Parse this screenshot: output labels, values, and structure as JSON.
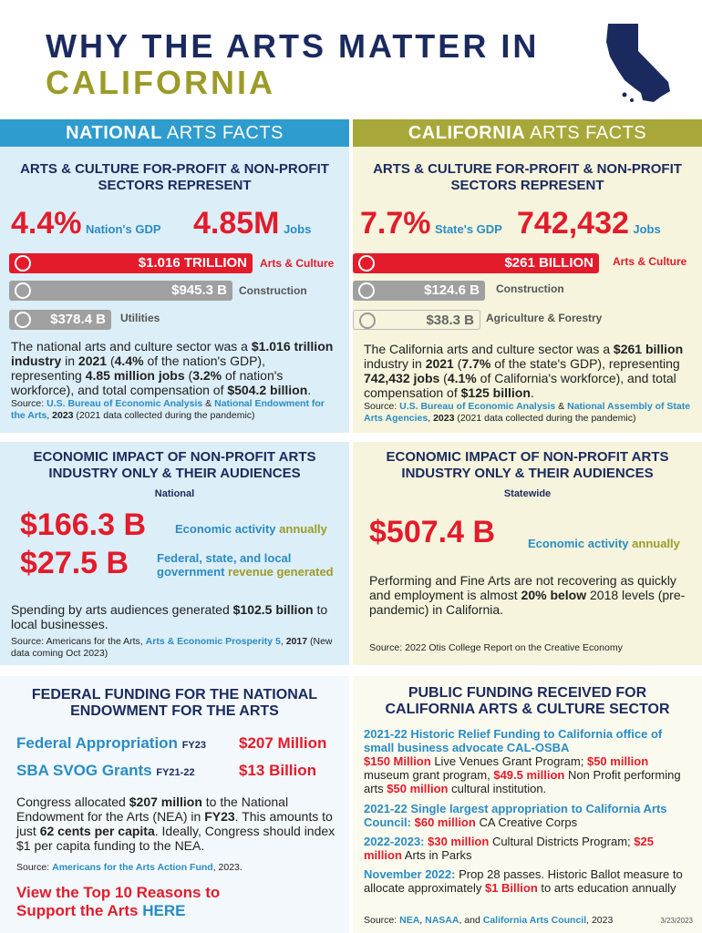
{
  "header": {
    "title_line1": "WHY THE ARTS MATTER IN",
    "title_line2": "CALIFORNIA"
  },
  "national": {
    "heading": {
      "bold": "NATIONAL",
      "light": "ARTS FACTS"
    },
    "sectors": {
      "title": "ARTS & CULTURE FOR-PROFIT & NON-PROFIT SECTORS REPRESENT",
      "gdp_value": "4.4%",
      "gdp_label": "Nation's GDP",
      "jobs_value": "4.85M",
      "jobs_label": "Jobs",
      "bars": [
        {
          "value": "$1.016 TRILLION",
          "label": "Arts & Culture"
        },
        {
          "value": "$945.3 B",
          "label": "Construction"
        },
        {
          "value": "$378.4 B",
          "label": "Utilities"
        }
      ],
      "summary": [
        "The national arts and culture sector was a ",
        "$1.016 trillion industry",
        " in ",
        "2021",
        " (",
        "4.4%",
        " of the nation's GDP), representing ",
        "4.85 million jobs",
        " (",
        "3.2%",
        " of nation's workforce), and total compensation of ",
        "$504.2 billion",
        "."
      ],
      "source": [
        "Source: ",
        "U.S. Bureau of Economic Analysis",
        " & ",
        "National Endowment for the Arts",
        ", ",
        "2023",
        " (2021 data collected during the pandemic)"
      ]
    },
    "impact": {
      "title": "ECONOMIC IMPACT OF NON-PROFIT ARTS INDUSTRY ONLY & THEIR AUDIENCES",
      "subtitle": "National",
      "items": [
        {
          "value": "$166.3 B",
          "label": "Economic activity",
          "suffix": " annually"
        },
        {
          "value": "$27.5 B",
          "label": "Federal, state, and local government",
          "suffix": " revenue generated"
        }
      ],
      "text": [
        "Spending by arts audiences generated ",
        "$102.5 billion",
        " to local businesses."
      ],
      "source": [
        "Source: Americans for the Arts, ",
        "Arts & Economic Prosperity 5",
        ", ",
        "2017",
        " (New data coming Oct 2023)"
      ]
    },
    "funding": {
      "title": "FEDERAL FUNDING FOR THE NATIONAL ENDOWMENT FOR THE ARTS",
      "rows": [
        {
          "label": "Federal Appropriation",
          "period": "FY23",
          "amount": "$207 Million"
        },
        {
          "label": "SBA SVOG Grants",
          "period": "FY21-22",
          "amount": "$13 Billion"
        }
      ],
      "text": [
        "Congress allocated ",
        "$207 million",
        " to the National Endowment for the Arts (NEA) in ",
        "FY23",
        ". This amounts to just ",
        "62 cents per capita",
        ". Ideally, Congress should index $1 per capita funding to the NEA."
      ],
      "source": [
        "Source: ",
        "Americans for the Arts Action Fund",
        ", 2023."
      ],
      "link": [
        "View the Top 10 Reasons to Support the Arts ",
        "HERE"
      ]
    }
  },
  "california": {
    "heading": {
      "bold": "CALIFORNIA",
      "light": "ARTS FACTS"
    },
    "sectors": {
      "title": "ARTS & CULTURE FOR-PROFIT & NON-PROFIT SECTORS REPRESENT",
      "gdp_value": "7.7%",
      "gdp_label": "State's GDP",
      "jobs_value": "742,432",
      "jobs_label": "Jobs",
      "bars": [
        {
          "value": "$261 BILLION",
          "label": "Arts & Culture"
        },
        {
          "value": "$124.6 B",
          "label": "Construction"
        },
        {
          "value": "$38.3 B",
          "label": "Agriculture & Forestry"
        }
      ],
      "summary": [
        "The California arts and culture sector was a ",
        "$261 billion",
        " industry in ",
        "2021",
        " (",
        "7.7%",
        " of the state's GDP), representing ",
        "742,432 jobs",
        " (",
        "4.1%",
        " of California's workforce), and total compensation of ",
        "$125 billion",
        "."
      ],
      "source": [
        "Source: ",
        "U.S. Bureau of Economic Analysis",
        " & ",
        "National Assembly of State Arts Agencies",
        ", ",
        "2023",
        " (2021 data collected during the pandemic)"
      ]
    },
    "impact": {
      "title": "ECONOMIC IMPACT OF NON-PROFIT ARTS INDUSTRY ONLY & THEIR AUDIENCES",
      "subtitle": "Statewide",
      "items": [
        {
          "value": "$507.4 B",
          "label": "Economic activity",
          "suffix": " annually"
        }
      ],
      "text": [
        "Performing and Fine Arts are not recovering as quickly and employment is almost ",
        "20% below",
        " 2018 levels (pre-pandemic) in California."
      ],
      "source": [
        "Source: 2022 Otis College Report on the Creative Economy"
      ]
    },
    "funding": {
      "title": "PUBLIC FUNDING RECEIVED FOR CALIFORNIA ARTS & CULTURE SECTOR",
      "items": [
        [
          "2021-22 Historic Relief Funding to California office of small business advocate CAL-OSBA",
          "$150 Million",
          " Live Venues Grant Program; ",
          "$50 million",
          " museum grant program, ",
          "$49.5 million",
          " Non Profit performing arts ",
          "$50 million",
          " cultural institution."
        ],
        [
          "2021-22 Single largest appropriation to California Arts Council:",
          "$60 million",
          " CA Creative Corps"
        ],
        [
          "2022-2023:",
          " ",
          "$30 million",
          " Cultural Districts Program; ",
          "$25 million",
          " Arts in Parks"
        ],
        [
          "November 2022:",
          " Prop 28 passes. Historic Ballot measure to allocate approximately ",
          "$1 Billion",
          " to arts education annually"
        ]
      ],
      "source": [
        "Source: ",
        "NEA",
        ", ",
        "NASAA",
        ", and ",
        "California Arts Council",
        ", 2023"
      ],
      "date": "3/23/2023"
    }
  }
}
